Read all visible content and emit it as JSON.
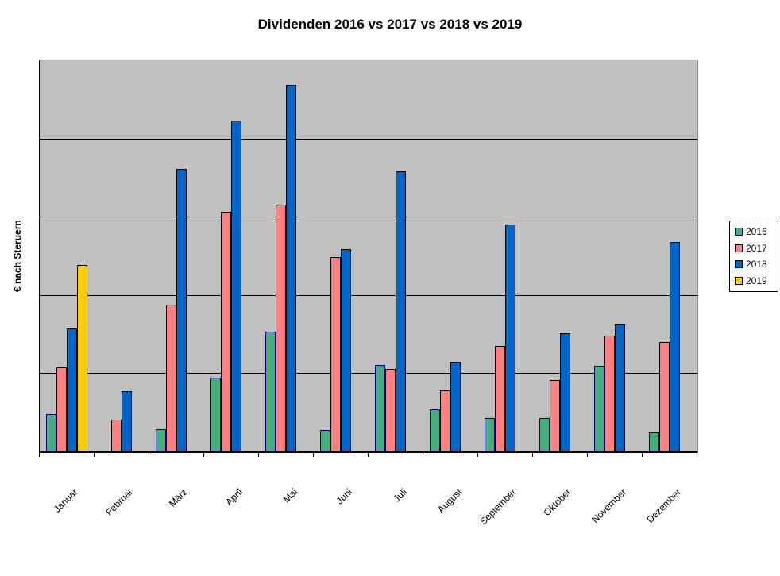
{
  "title": "Dividenden 2016 vs 2017 vs 2018 vs 2019",
  "y_axis_label": "€ nach Steruern",
  "chart_data": {
    "type": "bar",
    "title": "Dividenden 2016 vs 2017 vs 2018 vs 2019",
    "xlabel": "",
    "ylabel": "€ nach Steruern",
    "categories": [
      "Januar",
      "Februar",
      "März",
      "April",
      "Mai",
      "Juni",
      "Juli",
      "August",
      "September",
      "Oktober",
      "November",
      "Dezember"
    ],
    "series": [
      {
        "name": "2016",
        "color": "#44AF7C",
        "border_color": "#000080",
        "values": [
          0.48,
          0,
          0.28,
          0.94,
          1.53,
          0.27,
          1.11,
          0.54,
          0.43,
          0.43,
          1.1,
          0.24
        ]
      },
      {
        "name": "2017",
        "color": "#FF8080",
        "border_color": "#000000",
        "values": [
          1.07,
          0.41,
          1.88,
          3.06,
          3.15,
          2.48,
          1.05,
          0.78,
          1.35,
          0.91,
          1.48,
          1.4
        ]
      },
      {
        "name": "2018",
        "color": "#0066CC",
        "border_color": "#000000",
        "values": [
          1.57,
          0.77,
          3.61,
          4.23,
          4.69,
          2.59,
          3.58,
          1.15,
          2.9,
          1.51,
          1.62,
          2.68
        ]
      },
      {
        "name": "2019",
        "color": "#FFCC00",
        "border_color": "#000000",
        "values": [
          2.38,
          0,
          0,
          0,
          0,
          0,
          0,
          0,
          0,
          0,
          0,
          0
        ]
      }
    ],
    "ylim": [
      0,
      5
    ],
    "y_axis_numeric_labels_visible": false,
    "y_units_note": "values estimated in gridline intervals; no numeric y tick labels are shown in the chart",
    "grid": "horizontal",
    "gridline_divisions": 5,
    "legend_position": "right",
    "plot_background_color": "#C0C0C0",
    "plot_border_color": "#848284",
    "category_labels_rotation_deg": 45
  }
}
